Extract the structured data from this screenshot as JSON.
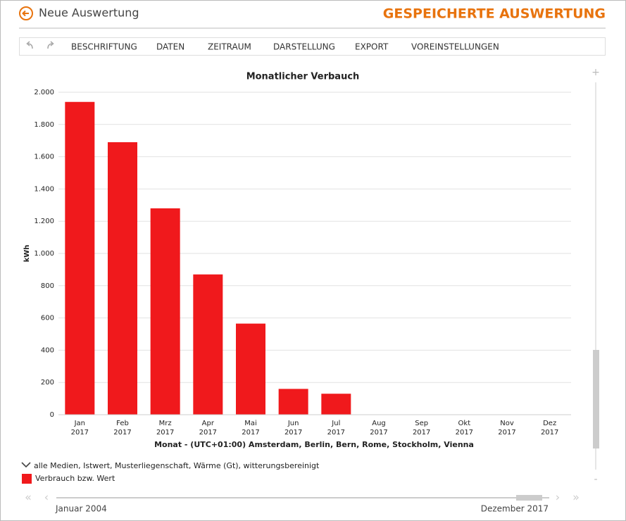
{
  "header": {
    "back_label": "Neue Auswertung",
    "title": "GESPEICHERTE AUSWERTUNG"
  },
  "toolbar": [
    "BESCHRIFTUNG",
    "DATEN",
    "ZEITRAUM",
    "DARSTELLUNG",
    "EXPORT",
    "VOREINSTELLUNGEN"
  ],
  "chart_data": {
    "type": "bar",
    "title": "Monatlicher Verbauch",
    "categories": [
      "Jan 2017",
      "Feb 2017",
      "Mrz 2017",
      "Apr 2017",
      "Mai 2017",
      "Jun 2017",
      "Jul 2017",
      "Aug 2017",
      "Sep 2017",
      "Okt 2017",
      "Nov 2017",
      "Dez 2017"
    ],
    "series": [
      {
        "name": "Verbrauch bzw. Wert",
        "color": "#f0191c",
        "values": [
          1940,
          1690,
          1280,
          870,
          565,
          160,
          130,
          null,
          null,
          null,
          null,
          null
        ]
      }
    ],
    "ylabel": "kWh",
    "xlabel": "Monat - (UTC+01:00) Amsterdam, Berlin, Bern, Rome, Stockholm, Vienna",
    "ylim": [
      0,
      2000
    ],
    "yticks": [
      0,
      200,
      400,
      600,
      800,
      {
        "value": 1000,
        "label": "1.000"
      },
      {
        "value": 1200,
        "label": "1.200"
      },
      {
        "value": 1400,
        "label": "1.400"
      },
      {
        "value": 1600,
        "label": "1.600"
      },
      {
        "value": 1800,
        "label": "1.800"
      },
      {
        "value": 2000,
        "label": "2.000"
      }
    ],
    "grid": true
  },
  "filter_label": "alle Medien, Istwert, Musterliegenschaft, Wärme (Gt), witterungsbereinigt",
  "range": {
    "start": "Januar 2004",
    "end": "Dezember 2017"
  }
}
